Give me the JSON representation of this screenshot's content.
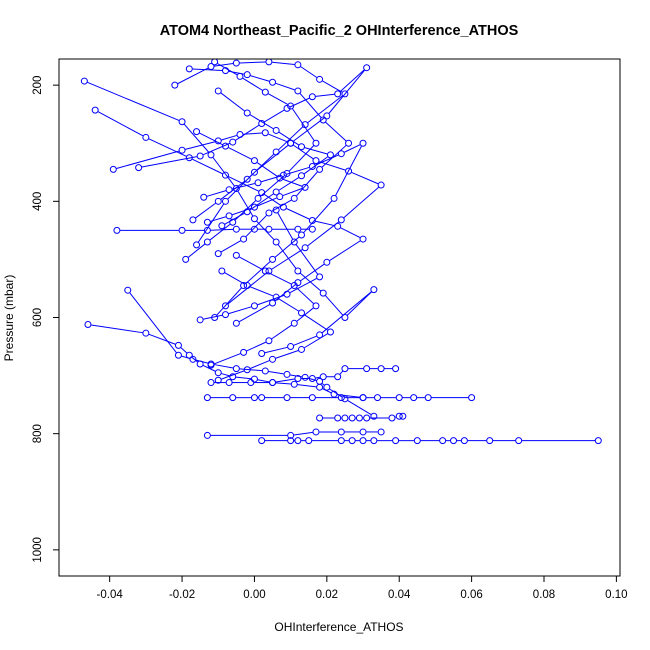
{
  "chart_data": {
    "type": "line",
    "title": "ATOM4 Northeast_Pacific_2 OHInterference_ATHOS",
    "xlabel": "OHInterference_ATHOS",
    "ylabel": "Pressure (mbar)",
    "xlim": [
      -0.054,
      0.101
    ],
    "ylim": [
      1045,
      155
    ],
    "y_reversed": true,
    "x_ticks": [
      -0.04,
      -0.02,
      0.0,
      0.02,
      0.04,
      0.06,
      0.08,
      0.1
    ],
    "x_tick_labels": [
      "-0.04",
      "-0.02",
      "0.00",
      "0.02",
      "0.04",
      "0.06",
      "0.08",
      "0.10"
    ],
    "y_ticks": [
      200,
      400,
      600,
      800,
      1000
    ],
    "y_tick_labels": [
      "200",
      "400",
      "600",
      "800",
      "1000"
    ],
    "grid": false,
    "legend": "none",
    "series_color": "#0000ff",
    "marker": "open-circle",
    "series": [
      {
        "x": [
          0.095,
          0.073,
          0.065,
          0.058,
          0.055,
          0.052,
          0.045,
          0.039,
          0.033,
          0.03,
          0.027,
          0.024,
          0.015,
          0.012,
          0.01,
          0.002
        ],
        "y": [
          812,
          812,
          812,
          812,
          812,
          812,
          812,
          812,
          812,
          812,
          812,
          812,
          812,
          812,
          812,
          812
        ]
      },
      {
        "x": [
          -0.013,
          0.01,
          0.017,
          0.024,
          0.03,
          0.035
        ],
        "y": [
          803,
          803,
          797,
          797,
          797,
          797
        ]
      },
      {
        "x": [
          0.041,
          0.04,
          0.038,
          0.031,
          0.029,
          0.027,
          0.025,
          0.023,
          0.018
        ],
        "y": [
          770,
          770,
          773,
          773,
          773,
          773,
          773,
          773,
          773
        ]
      },
      {
        "x": [
          0.06,
          0.048,
          0.044,
          0.04,
          0.034,
          0.03,
          0.024,
          0.016,
          0.009,
          0.002,
          0.0,
          -0.006,
          -0.013
        ],
        "y": [
          738,
          738,
          738,
          738,
          738,
          738,
          738,
          738,
          738,
          738,
          738,
          738,
          738
        ]
      },
      {
        "x": [
          0.039,
          0.035,
          0.031,
          0.025,
          0.023,
          0.019,
          0.016,
          0.012,
          0.005,
          -0.001,
          -0.007,
          -0.012
        ],
        "y": [
          688,
          688,
          688,
          688,
          702,
          702,
          705,
          705,
          712,
          712,
          712,
          712
        ]
      },
      {
        "x": [
          -0.046,
          -0.03,
          -0.021,
          -0.018,
          -0.015,
          -0.01,
          -0.006,
          0.0,
          0.005,
          0.011,
          0.018,
          0.022,
          0.03
        ],
        "y": [
          612,
          627,
          648,
          665,
          680,
          695,
          702,
          706,
          712,
          715,
          720,
          732,
          738
        ]
      },
      {
        "x": [
          -0.035,
          -0.021,
          -0.017,
          -0.012,
          -0.005,
          0.003,
          0.009,
          0.014,
          0.018,
          0.02,
          0.025,
          0.033
        ],
        "y": [
          553,
          665,
          672,
          680,
          688,
          692,
          698,
          703,
          710,
          720,
          740,
          770
        ]
      },
      {
        "x": [
          -0.038,
          -0.02,
          -0.013,
          -0.005,
          0.0,
          0.004,
          0.012,
          0.016
        ],
        "y": [
          450,
          450,
          450,
          448,
          448,
          448,
          448,
          448
        ]
      },
      {
        "x": [
          -0.047,
          -0.02,
          -0.012,
          -0.005,
          0.0,
          0.006,
          0.012,
          0.019,
          0.025,
          0.033,
          0.018,
          0.01,
          0.002
        ],
        "y": [
          193,
          263,
          320,
          378,
          430,
          470,
          520,
          558,
          600,
          552,
          630,
          650,
          662
        ]
      },
      {
        "x": [
          -0.044,
          -0.03,
          -0.018,
          -0.008,
          0.002,
          0.008,
          0.016,
          0.023,
          0.03,
          0.02,
          0.012,
          0.005,
          -0.005
        ],
        "y": [
          243,
          290,
          325,
          355,
          385,
          410,
          433,
          443,
          465,
          505,
          540,
          575,
          610
        ]
      },
      {
        "x": [
          -0.039,
          -0.02,
          -0.01,
          -0.004,
          0.003,
          0.01,
          0.017,
          0.026,
          0.035,
          0.024,
          0.014,
          0.004,
          -0.008
        ],
        "y": [
          345,
          312,
          296,
          285,
          282,
          300,
          330,
          348,
          372,
          432,
          480,
          520,
          580
        ]
      },
      {
        "x": [
          -0.032,
          -0.015,
          -0.006,
          0.002,
          0.009,
          0.016,
          0.023,
          0.031,
          0.02,
          0.01,
          0.0,
          -0.008,
          -0.016
        ],
        "y": [
          342,
          322,
          298,
          266,
          240,
          220,
          215,
          170,
          253,
          300,
          350,
          400,
          475
        ]
      },
      {
        "x": [
          -0.022,
          -0.012,
          -0.005,
          0.004,
          0.012,
          0.018,
          0.025,
          0.014,
          0.006,
          -0.002,
          -0.01,
          -0.017
        ],
        "y": [
          200,
          168,
          162,
          160,
          165,
          190,
          215,
          268,
          315,
          362,
          400,
          432
        ]
      },
      {
        "x": [
          -0.014,
          -0.007,
          0.001,
          0.008,
          0.016,
          0.024,
          0.03,
          0.022,
          0.013,
          0.005,
          -0.003,
          -0.011
        ],
        "y": [
          393,
          380,
          368,
          355,
          340,
          318,
          300,
          395,
          458,
          500,
          545,
          600
        ]
      },
      {
        "x": [
          -0.011,
          -0.004,
          0.003,
          0.01,
          0.017,
          0.009,
          0.001,
          -0.006,
          -0.013,
          -0.019
        ],
        "y": [
          160,
          185,
          212,
          236,
          300,
          352,
          395,
          436,
          470,
          500
        ]
      },
      {
        "x": [
          -0.018,
          -0.008,
          -0.002,
          0.005,
          0.012,
          0.019,
          0.026,
          0.018,
          0.011,
          0.004,
          -0.003,
          -0.01
        ],
        "y": [
          172,
          175,
          182,
          195,
          210,
          260,
          300,
          345,
          395,
          420,
          465,
          490
        ]
      },
      {
        "x": [
          -0.016,
          -0.008,
          0.0,
          0.007,
          0.014,
          0.007,
          0.0,
          -0.007,
          -0.013
        ],
        "y": [
          280,
          305,
          330,
          360,
          376,
          392,
          410,
          425,
          436
        ]
      },
      {
        "x": [
          -0.01,
          -0.002,
          0.006,
          0.013,
          0.021,
          0.013,
          0.006,
          -0.002,
          -0.009
        ],
        "y": [
          210,
          248,
          278,
          306,
          320,
          356,
          384,
          418,
          442
        ]
      },
      {
        "x": [
          0.006,
          0.011,
          0.018,
          0.009,
          0.0,
          -0.008,
          -0.015
        ],
        "y": [
          415,
          470,
          530,
          560,
          580,
          595,
          604
        ]
      },
      {
        "x": [
          -0.005,
          0.003,
          0.011,
          0.017,
          0.011,
          0.004,
          -0.003,
          -0.012
        ],
        "y": [
          493,
          520,
          545,
          580,
          610,
          640,
          660,
          682
        ]
      },
      {
        "x": [
          -0.009,
          -0.002,
          0.006,
          0.013,
          0.021,
          0.013,
          0.005,
          -0.002,
          -0.01
        ],
        "y": [
          520,
          545,
          565,
          592,
          625,
          655,
          672,
          690,
          708
        ]
      }
    ]
  }
}
